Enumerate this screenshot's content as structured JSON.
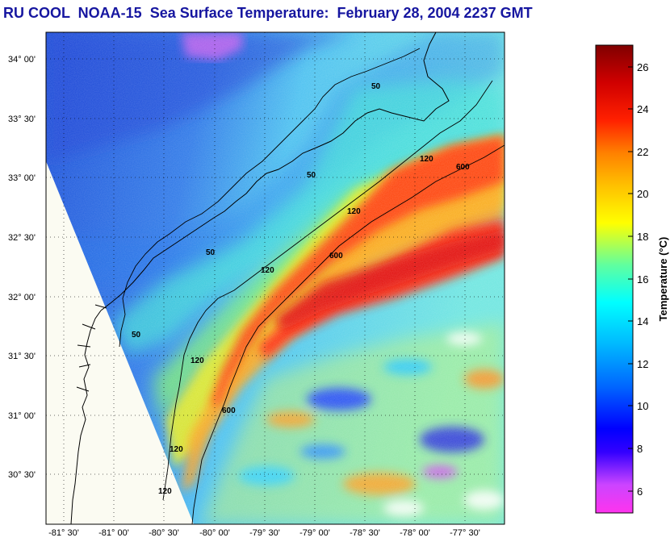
{
  "title": "RU COOL  NOAA-15  Sea Surface Temperature:  February 28, 2004 2237 GMT",
  "map": {
    "lat_ticks": [
      "34° 00'",
      "33° 30'",
      "33° 00'",
      "32° 30'",
      "32° 00'",
      "31° 30'",
      "31° 00'",
      "30° 30'"
    ],
    "lon_ticks": [
      "-81° 30'",
      "-81° 00'",
      "-80° 30'",
      "-80° 00'",
      "-79° 30'",
      "-79° 00'",
      "-78° 30'",
      "-78° 00'",
      "-77° 30'"
    ],
    "contours": [
      {
        "label": "50",
        "depth_m": 50
      },
      {
        "label": "120",
        "depth_m": 120
      },
      {
        "label": "600",
        "depth_m": 600
      }
    ]
  },
  "colorbar": {
    "label": "Temperature (°C)",
    "ticks": [
      "6",
      "8",
      "10",
      "12",
      "14",
      "16",
      "18",
      "20",
      "22",
      "24",
      "26"
    ],
    "min": 5,
    "max": 27,
    "colors": {
      "min": "#ff33ee",
      "low": "#0000ff",
      "mid_low": "#00ffff",
      "mid": "#ffff00",
      "mid_high": "#ff8000",
      "high": "#ff0000",
      "max": "#800000"
    }
  }
}
